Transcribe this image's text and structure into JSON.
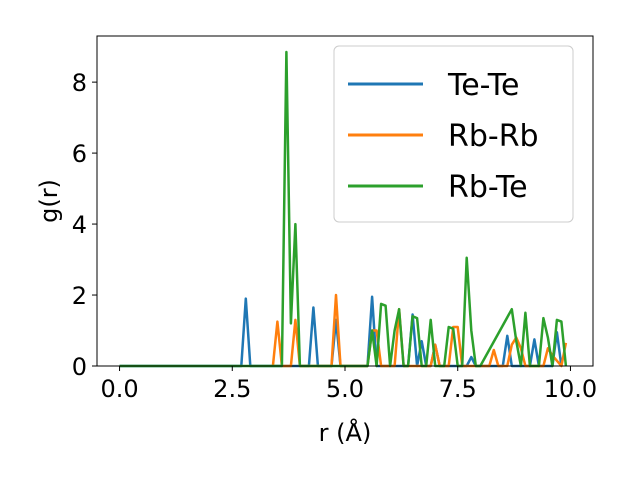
{
  "chart_data": {
    "type": "line",
    "xlabel": "r (Å)",
    "ylabel": "g(r)",
    "xlim": [
      -0.5,
      10.5
    ],
    "ylim": [
      0,
      9.3
    ],
    "xticks": [
      0.0,
      2.5,
      5.0,
      7.5,
      10.0
    ],
    "xtick_labels": [
      "0.0",
      "2.5",
      "5.0",
      "7.5",
      "10.0"
    ],
    "yticks": [
      0,
      2,
      4,
      6,
      8
    ],
    "ytick_labels": [
      "0",
      "2",
      "4",
      "6",
      "8"
    ],
    "grid": false,
    "legend_position": "top-right",
    "series": [
      {
        "name": "Te-Te",
        "color": "#1f77b4",
        "x": [
          0.0,
          2.7,
          2.8,
          2.9,
          4.2,
          4.3,
          4.4,
          4.7,
          4.8,
          4.9,
          5.5,
          5.6,
          5.7,
          6.4,
          6.5,
          6.6,
          6.7,
          6.8,
          6.9,
          7.0,
          7.1,
          7.2,
          7.7,
          7.8,
          7.9,
          8.5,
          8.6,
          8.7,
          9.1,
          9.2,
          9.3,
          9.6,
          9.7,
          9.8
        ],
        "y": [
          0.0,
          0.0,
          1.9,
          0.0,
          0.0,
          1.65,
          0.0,
          0.0,
          1.3,
          0.0,
          0.0,
          1.95,
          0.0,
          0.0,
          1.45,
          0.0,
          0.7,
          0.0,
          0.0,
          0.6,
          0.0,
          0.0,
          0.0,
          0.25,
          0.0,
          0.0,
          0.85,
          0.0,
          0.0,
          0.75,
          0.0,
          0.0,
          0.95,
          0.0
        ]
      },
      {
        "name": "Rb-Rb",
        "color": "#ff7f0e",
        "x": [
          3.4,
          3.5,
          3.6,
          3.8,
          3.9,
          4.0,
          4.7,
          4.8,
          4.9,
          5.5,
          5.6,
          5.7,
          5.8,
          6.1,
          6.2,
          6.3,
          6.9,
          7.0,
          7.1,
          7.3,
          7.4,
          7.5,
          7.6,
          8.2,
          8.3,
          8.4,
          8.6,
          8.7,
          8.8,
          8.9,
          9.0,
          9.4,
          9.5,
          9.6,
          9.8,
          9.9
        ],
        "y": [
          0.0,
          1.25,
          0.0,
          0.0,
          1.3,
          0.0,
          0.0,
          2.0,
          0.0,
          0.0,
          1.0,
          1.0,
          0.0,
          0.0,
          1.6,
          0.0,
          0.0,
          0.6,
          0.0,
          0.0,
          1.1,
          1.1,
          0.0,
          0.0,
          0.45,
          0.0,
          0.0,
          0.6,
          0.8,
          0.5,
          0.0,
          0.0,
          0.5,
          0.3,
          0.0,
          0.65
        ]
      },
      {
        "name": "Rb-Te",
        "color": "#2ca02c",
        "x": [
          0.0,
          3.5,
          3.6,
          3.7,
          3.8,
          3.9,
          4.0,
          5.5,
          5.6,
          5.7,
          5.8,
          5.9,
          6.0,
          6.1,
          6.2,
          6.3,
          6.4,
          6.5,
          6.6,
          6.7,
          6.8,
          6.9,
          7.0,
          7.1,
          7.2,
          7.3,
          7.4,
          7.5,
          7.6,
          7.7,
          7.8,
          7.9,
          8.0,
          8.7,
          8.8,
          8.9,
          9.0,
          9.1,
          9.2,
          9.3,
          9.4,
          9.5,
          9.6,
          9.7,
          9.8,
          9.9
        ],
        "y": [
          0.0,
          0.0,
          0.0,
          8.85,
          1.2,
          4.0,
          0.0,
          0.0,
          1.0,
          0.0,
          1.75,
          1.7,
          0.0,
          1.0,
          1.6,
          0.0,
          0.0,
          1.4,
          1.35,
          0.0,
          0.0,
          1.3,
          0.0,
          0.0,
          0.0,
          1.1,
          1.05,
          0.0,
          0.0,
          3.05,
          1.0,
          0.0,
          0.0,
          1.6,
          0.7,
          0.0,
          1.5,
          0.0,
          0.0,
          0.0,
          1.35,
          0.8,
          0.0,
          1.3,
          1.25,
          0.0
        ]
      }
    ]
  }
}
